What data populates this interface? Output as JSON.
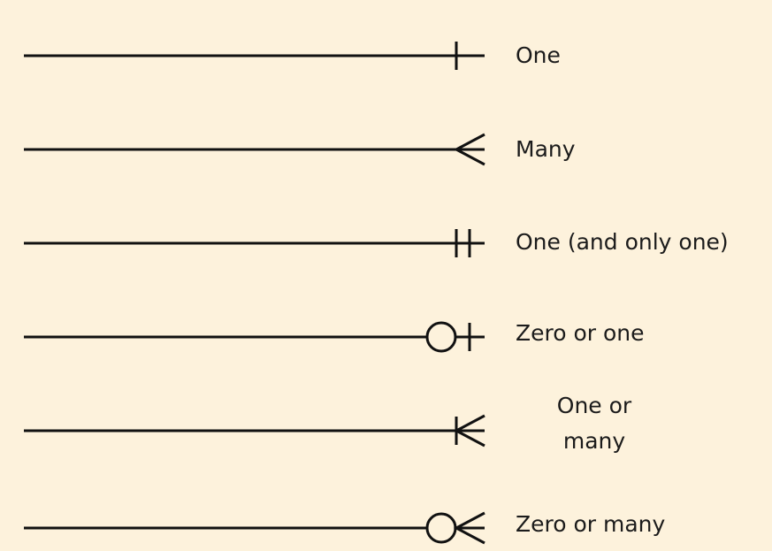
{
  "notations": [
    {
      "symbol": "one-icon",
      "label": "One"
    },
    {
      "symbol": "many-icon",
      "label": "Many"
    },
    {
      "symbol": "one-and-only-one-icon",
      "label": "One (and only one)"
    },
    {
      "symbol": "zero-or-one-icon",
      "label": "Zero or one"
    },
    {
      "symbol": "one-or-many-icon",
      "label": "One or many"
    },
    {
      "symbol": "zero-or-many-icon",
      "label": "Zero or many"
    }
  ]
}
